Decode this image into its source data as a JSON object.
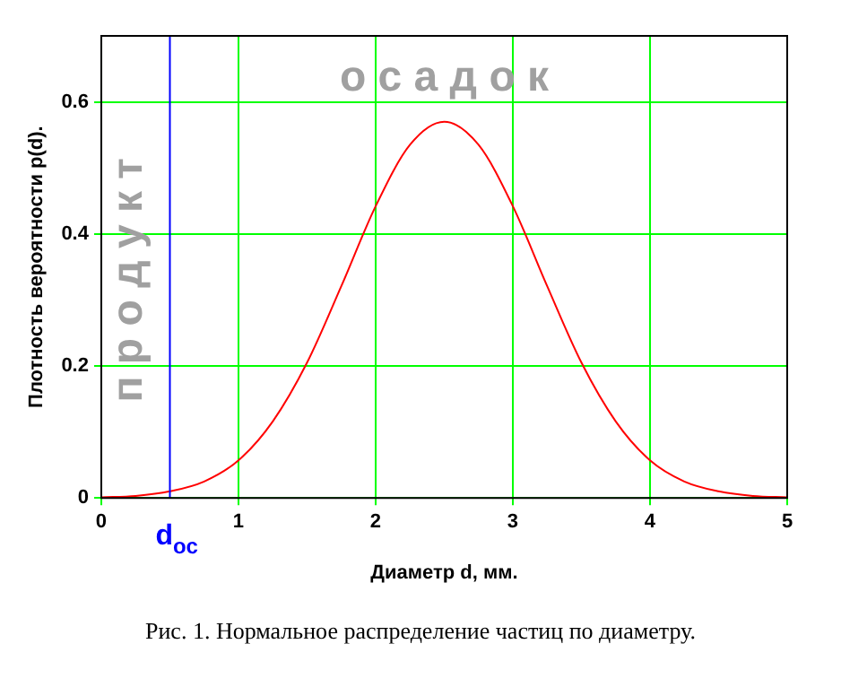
{
  "chart_data": {
    "type": "line",
    "xlabel": "Диаметр d, мм.",
    "ylabel": "Плотность вероятности p(d).",
    "x": [
      0,
      0.25,
      0.5,
      0.75,
      1,
      1.25,
      1.5,
      1.75,
      2,
      2.25,
      2.5,
      2.75,
      3,
      3.25,
      3.5,
      3.75,
      4,
      4.25,
      4.5,
      4.75,
      5
    ],
    "series": [
      {
        "color": "#ff0000",
        "values": [
          0.001,
          0.003,
          0.01,
          0.025,
          0.057,
          0.116,
          0.205,
          0.321,
          0.442,
          0.535,
          0.57,
          0.535,
          0.442,
          0.321,
          0.205,
          0.116,
          0.057,
          0.025,
          0.01,
          0.003,
          0.001
        ]
      }
    ],
    "xlim": [
      0,
      5
    ],
    "xticks": [
      0,
      1,
      2,
      3,
      4,
      5
    ],
    "ylim": [
      0,
      0.7
    ],
    "yticks": [
      0,
      0.2,
      0.4,
      0.6
    ],
    "grid": true,
    "marker": "none",
    "line_style": "solid",
    "ref_lines": [
      {
        "axis": "x",
        "value": 0.5,
        "label": "d$_{ос}$",
        "color": "#0000ff"
      }
    ],
    "annotations": [
      "о с а д о к",
      "п р о д у к т",
      "Рис. 1. Нормальное распределение частиц по диаметру."
    ]
  }
}
